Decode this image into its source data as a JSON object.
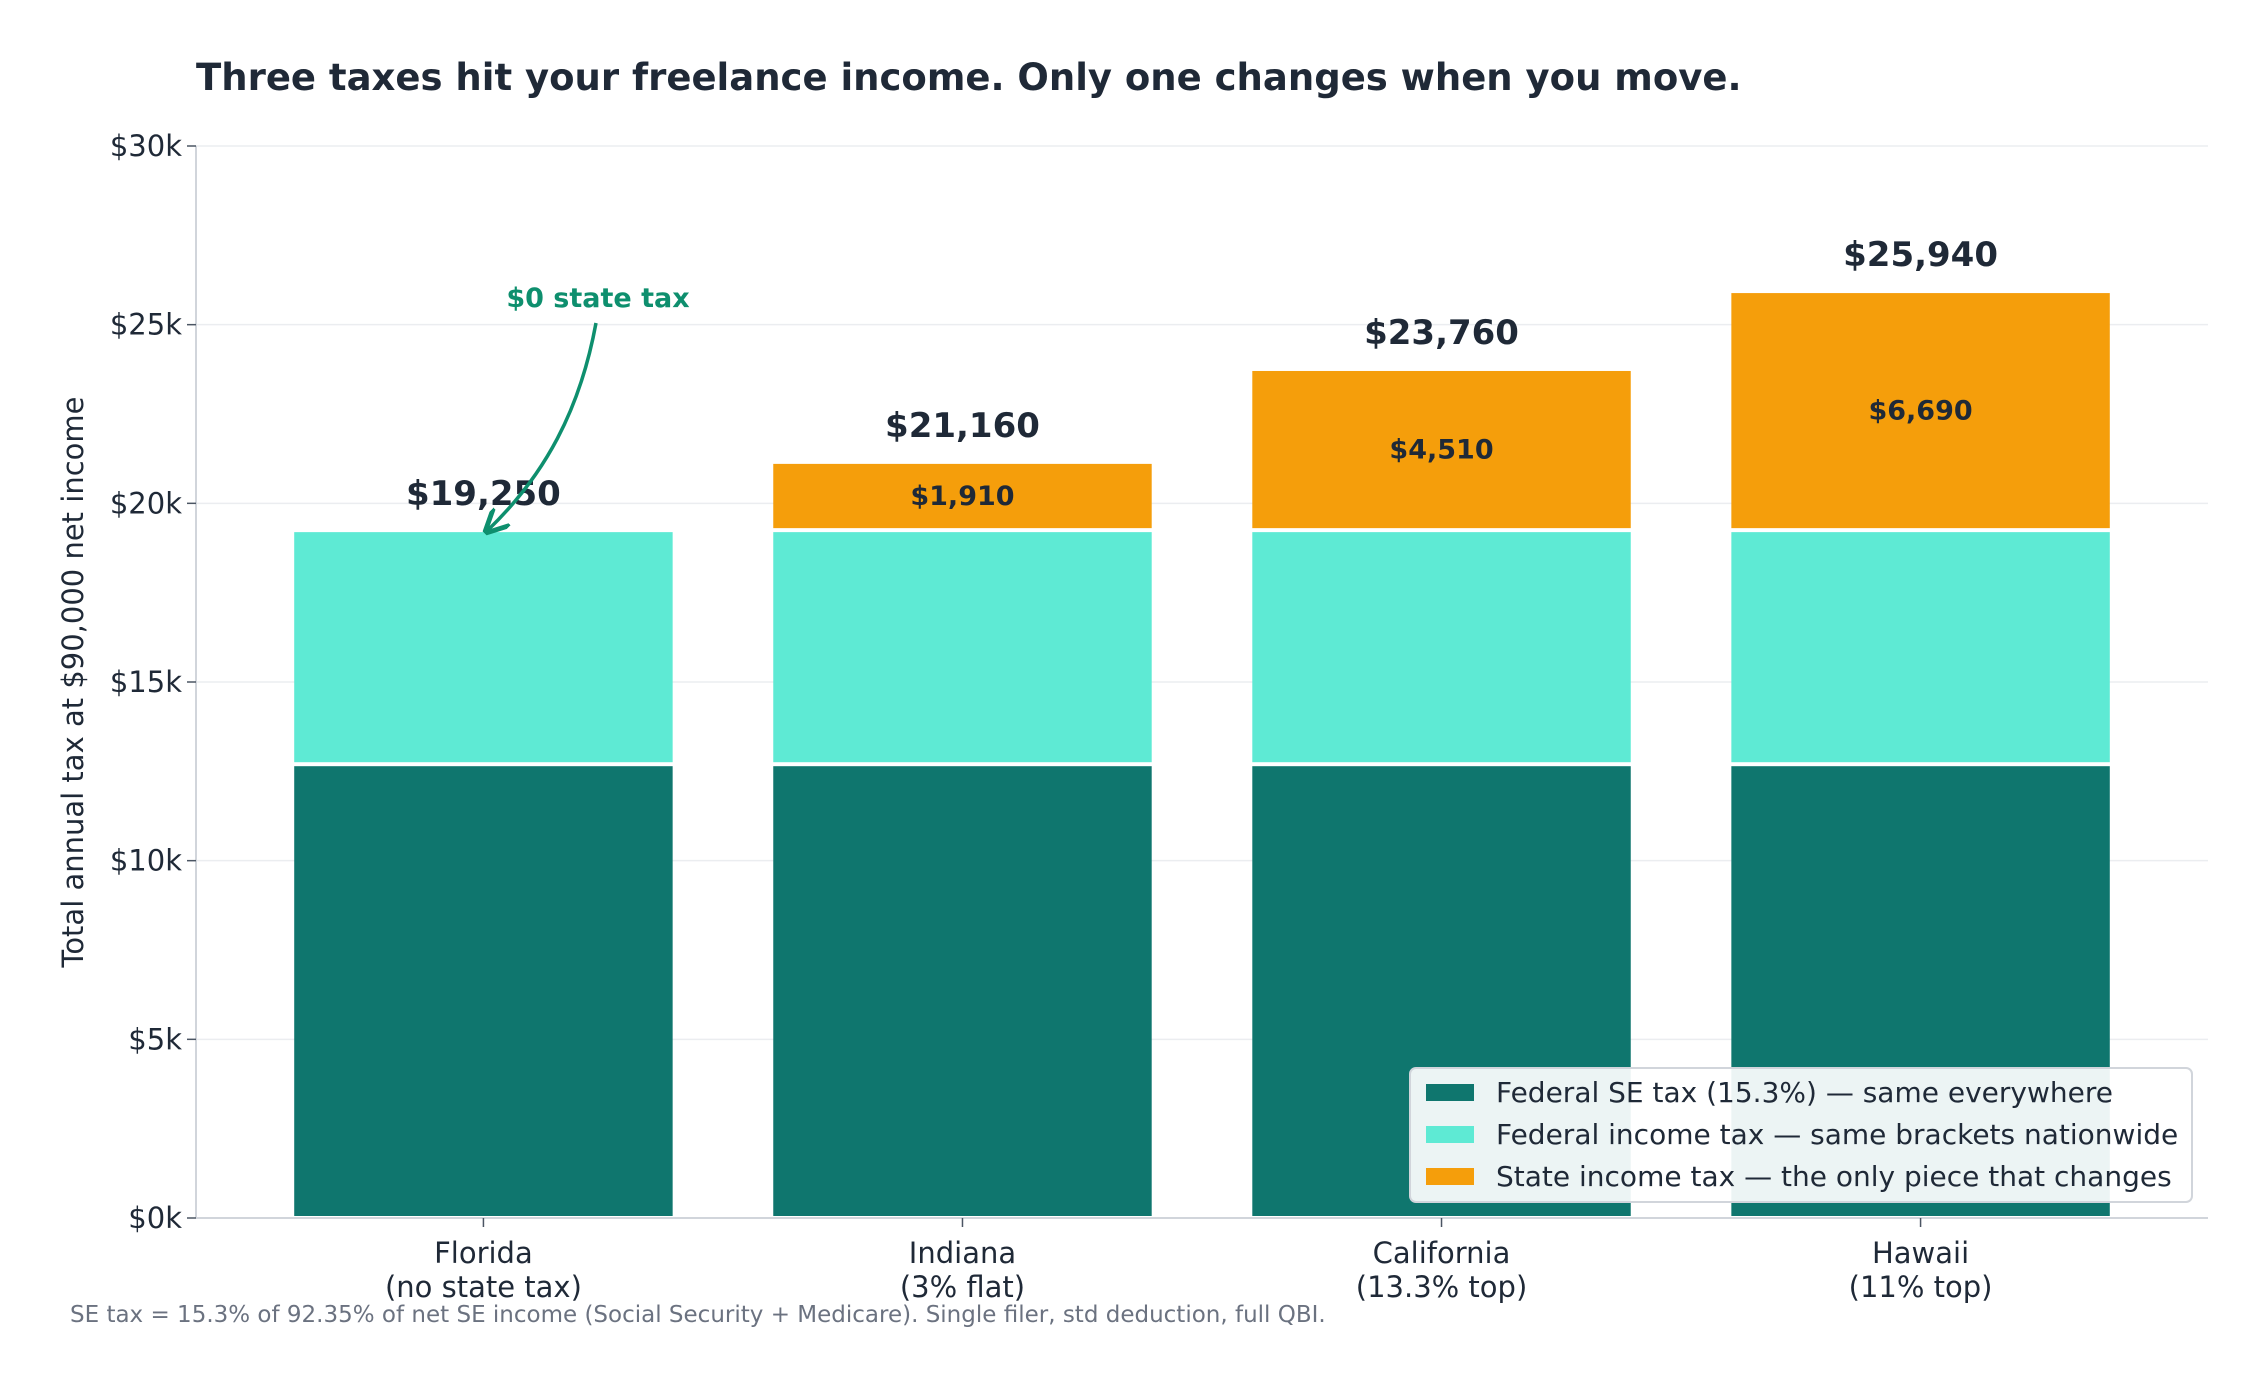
{
  "chart_data": {
    "type": "bar",
    "stacked": true,
    "title": "Three taxes hit your freelance income. Only one changes when you move.",
    "ylabel": "Total annual tax at $90,000 net income",
    "xlabel": "",
    "ylim": [
      0,
      30000
    ],
    "yticks": [
      0,
      5000,
      10000,
      15000,
      20000,
      25000,
      30000
    ],
    "ytick_labels": [
      "$0k",
      "$5k",
      "$10k",
      "$15k",
      "$20k",
      "$25k",
      "$30k"
    ],
    "categories": [
      [
        "Florida",
        "(no state tax)"
      ],
      [
        "Indiana",
        "(3% flat)"
      ],
      [
        "California",
        "(13.3% top)"
      ],
      [
        "Hawaii",
        "(11% top)"
      ]
    ],
    "series": [
      {
        "name": "Federal SE tax (15.3%) — same everywhere",
        "color": "#0f766e",
        "values": [
          12700,
          12700,
          12700,
          12700
        ]
      },
      {
        "name": "Federal income tax — same brackets nationwide",
        "color": "#5eead4",
        "values": [
          6550,
          6550,
          6550,
          6550
        ]
      },
      {
        "name": "State income tax — the only piece that changes",
        "color": "#f59e0b",
        "values": [
          0,
          1910,
          4510,
          6690
        ]
      }
    ],
    "totals": [
      19250,
      21160,
      23760,
      25940
    ],
    "total_labels": [
      "$19,250",
      "$21,160",
      "$23,760",
      "$25,940"
    ],
    "state_labels": [
      "",
      "$1,910",
      "$4,510",
      "$6,690"
    ],
    "annotation": {
      "text": "$0 state tax",
      "target_category": "Florida",
      "color": "#0e8f6e"
    },
    "legend_position": "bottom-right",
    "grid": "horizontal",
    "footnote": "SE tax = 15.3% of 92.35% of net SE income (Social Security + Medicare). Single filer, std deduction, full QBI."
  }
}
